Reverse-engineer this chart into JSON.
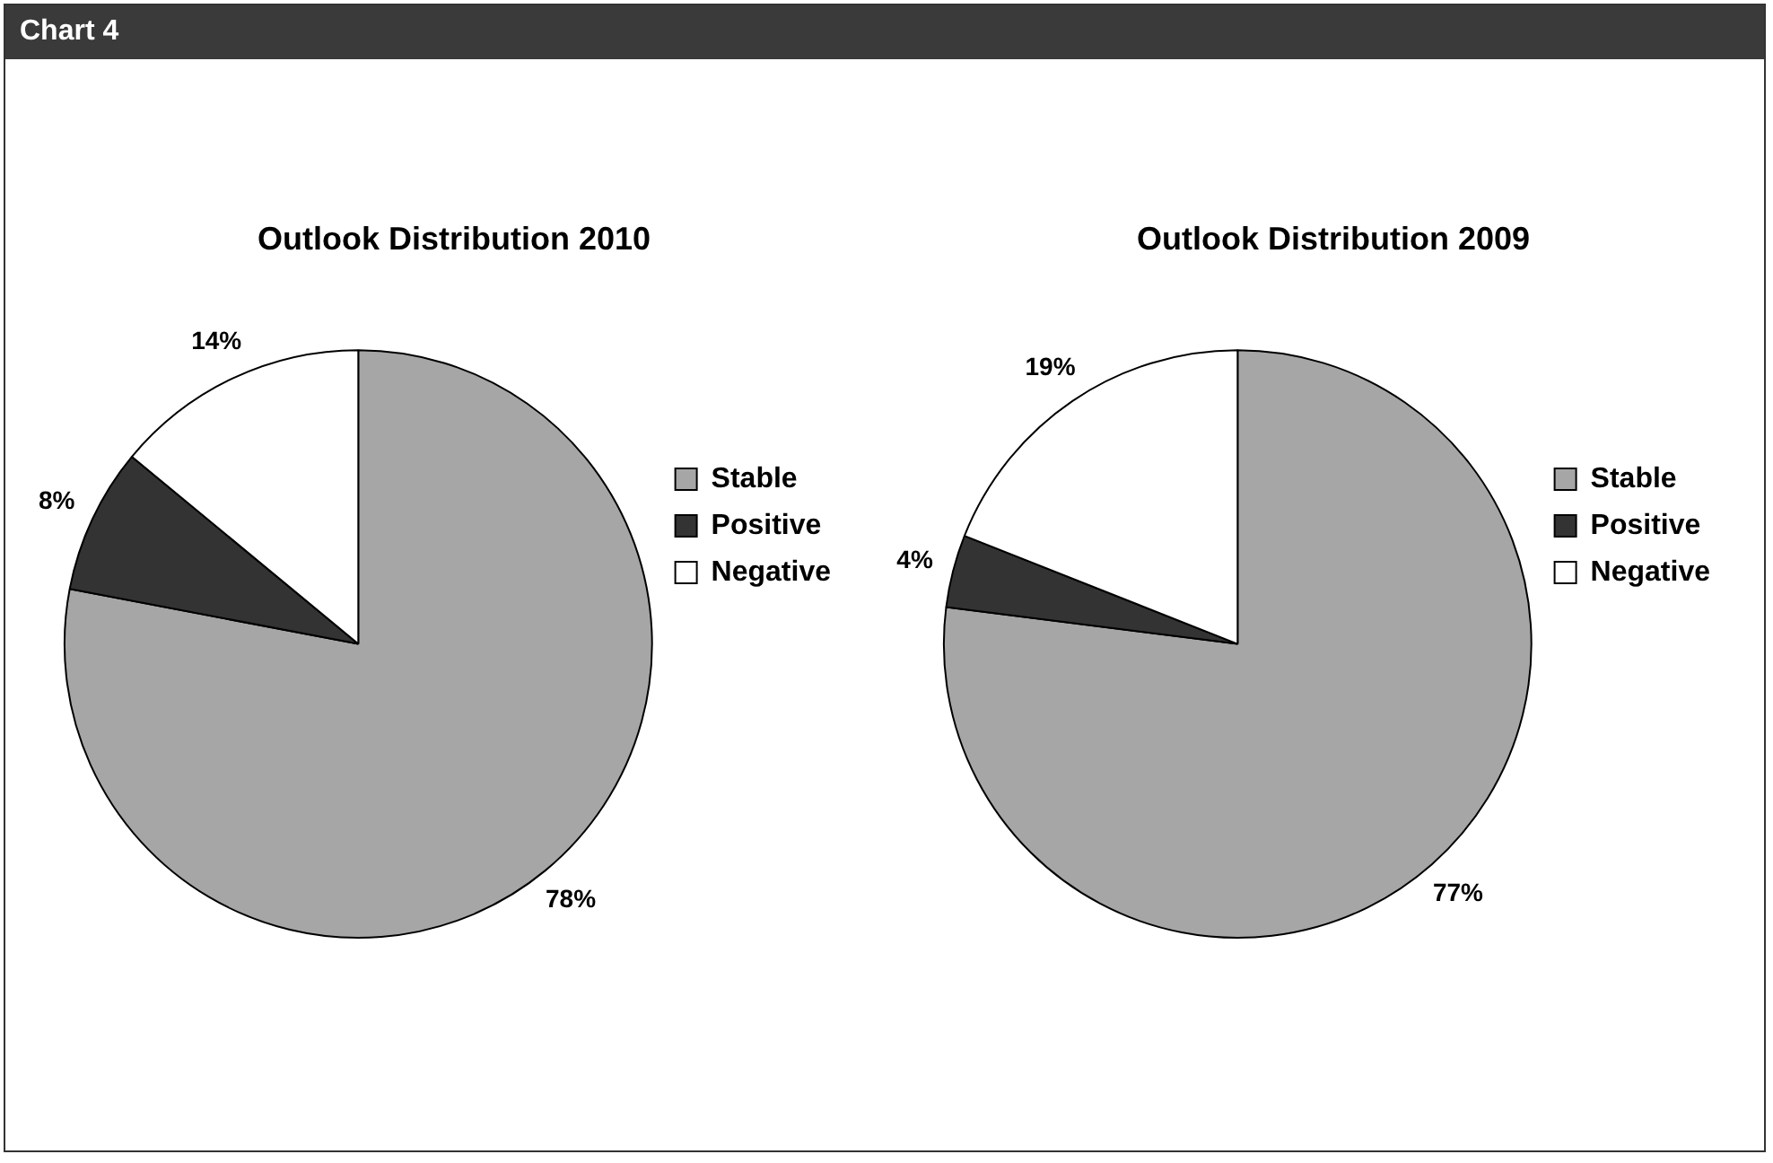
{
  "chart_data": [
    {
      "type": "other",
      "title": "Chart 4"
    },
    {
      "type": "pie",
      "title": "Outlook Distribution 2010",
      "categories": [
        "Stable",
        "Positive",
        "Negative"
      ],
      "values": [
        78,
        8,
        14
      ],
      "colors": [
        "#a6a6a6",
        "#333333",
        "#ffffff"
      ],
      "value_labels": [
        "78%",
        "8%",
        "14%"
      ],
      "legend": "right"
    },
    {
      "type": "pie",
      "title": "Outlook Distribution 2009",
      "categories": [
        "Stable",
        "Positive",
        "Negative"
      ],
      "values": [
        77,
        4,
        19
      ],
      "colors": [
        "#a6a6a6",
        "#333333",
        "#ffffff"
      ],
      "value_labels": [
        "77%",
        "4%",
        "19%"
      ],
      "legend": "right"
    }
  ]
}
